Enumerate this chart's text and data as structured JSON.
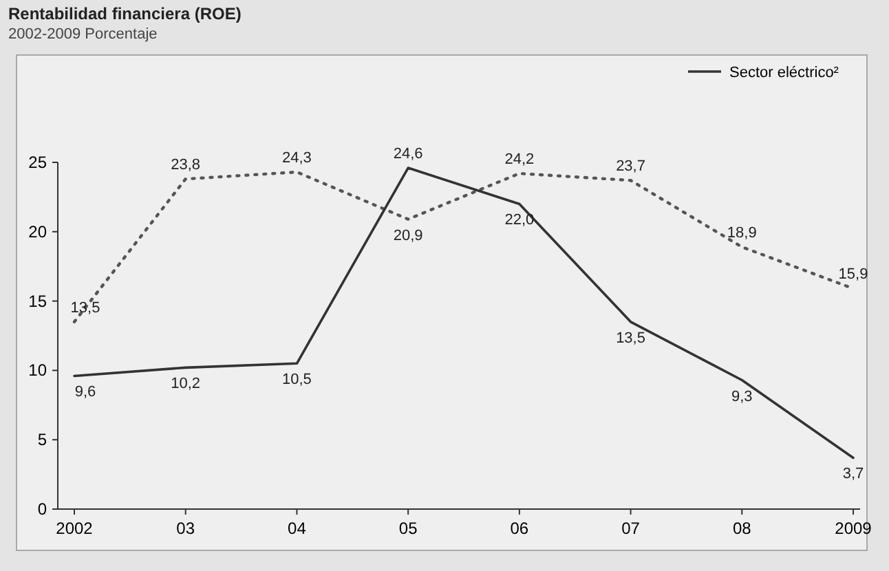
{
  "chart_data": {
    "type": "line",
    "title": "Rentabilidad financiera (ROE)",
    "subtitle": "2002-2009 Porcentaje",
    "categories": [
      "2002",
      "03",
      "04",
      "05",
      "06",
      "07",
      "08",
      "2009"
    ],
    "series": [
      {
        "color": "#555555",
        "line_style": "dotted",
        "values": [
          13.5,
          23.8,
          24.3,
          20.9,
          24.2,
          23.7,
          18.9,
          15.9
        ],
        "value_labels": [
          "13,5",
          "23,8",
          "24,3",
          "20,9",
          "24,2",
          "23,7",
          "18,9",
          "15,9"
        ]
      },
      {
        "name": "Sector eléctrico²",
        "color": "#333333",
        "line_style": "solid",
        "values": [
          9.6,
          10.2,
          10.5,
          24.6,
          22.0,
          13.5,
          9.3,
          3.7
        ],
        "value_labels": [
          "9,6",
          "10,2",
          "10,5",
          "24,6",
          "22,0",
          "13,5",
          "9,3",
          "3,7"
        ]
      }
    ],
    "ylim": [
      0,
      25
    ],
    "yticks": [
      0,
      5,
      10,
      15,
      20,
      25
    ],
    "legend": "top right",
    "grid": false,
    "marker": "none"
  }
}
